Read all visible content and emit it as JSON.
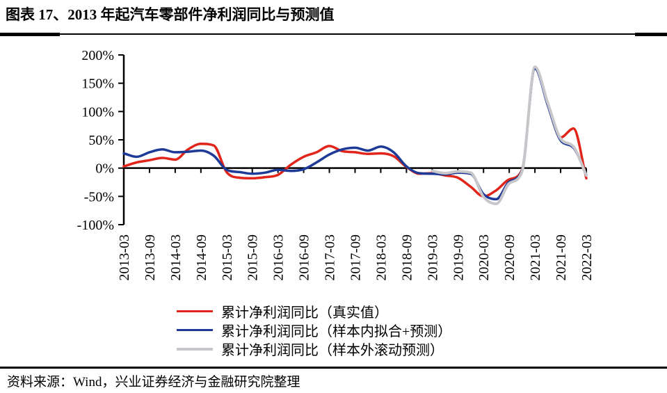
{
  "source": {
    "label": "资料来源：Wind，兴业证券经济与金融研究院整理"
  },
  "chart_data": {
    "type": "line",
    "title": "图表 17、2013 年起汽车零部件净利润同比与预测值",
    "xlabel": "",
    "ylabel": "",
    "ylim": [
      -100,
      200
    ],
    "grid": false,
    "legend_position": "bottom",
    "axis_color": "#000000",
    "y_ticks": [
      200,
      150,
      100,
      50,
      0,
      -50,
      -100
    ],
    "y_tick_labels": [
      "200%",
      "150%",
      "100%",
      "50%",
      "0%",
      "-50%",
      "-100%"
    ],
    "x_tick_labels": [
      "2013-03",
      "2013-09",
      "2014-03",
      "2014-09",
      "2015-03",
      "2015-09",
      "2016-03",
      "2016-09",
      "2017-03",
      "2017-09",
      "2018-03",
      "2018-09",
      "2019-03",
      "2019-09",
      "2020-03",
      "2020-09",
      "2021-03",
      "2021-09",
      "2022-03"
    ],
    "x": [
      "2013-03",
      "2013-06",
      "2013-09",
      "2013-12",
      "2014-03",
      "2014-06",
      "2014-09",
      "2014-12",
      "2015-03",
      "2015-06",
      "2015-09",
      "2015-12",
      "2016-03",
      "2016-06",
      "2016-09",
      "2016-12",
      "2017-03",
      "2017-06",
      "2017-09",
      "2017-12",
      "2018-03",
      "2018-06",
      "2018-09",
      "2018-12",
      "2019-03",
      "2019-06",
      "2019-09",
      "2019-12",
      "2020-03",
      "2020-06",
      "2020-09",
      "2020-12",
      "2021-03",
      "2021-06",
      "2021-09",
      "2021-12",
      "2022-03"
    ],
    "unit": "percent",
    "series": [
      {
        "key": "actual",
        "name": "累计净利润同比（真实值）",
        "color": "#E1251B",
        "width": 3.5,
        "values": [
          3,
          10,
          14,
          18,
          15,
          33,
          43,
          40,
          -7,
          -17,
          -18,
          -16,
          -12,
          6,
          20,
          28,
          39,
          30,
          28,
          25,
          26,
          21,
          2,
          -10,
          -9,
          -13,
          -17,
          -33,
          -50,
          -39,
          -20,
          -3,
          177,
          113,
          54,
          70,
          -18
        ]
      },
      {
        "key": "fitted",
        "name": "累计净利润同比（样本内拟合+预测）",
        "color": "#1E3A97",
        "width": 3.5,
        "values": [
          26,
          20,
          28,
          33,
          28,
          29,
          31,
          22,
          -3,
          -7,
          -10,
          -8,
          -3,
          -5,
          -2,
          10,
          24,
          33,
          36,
          31,
          38,
          28,
          3,
          -9,
          -10,
          -11,
          -8,
          -10,
          -46,
          -55,
          -24,
          -4,
          176,
          111,
          49,
          36,
          -12
        ]
      },
      {
        "key": "rolling",
        "name": "累计净利润同比（样本外滚动预测）",
        "color": "#C7C7CB",
        "width": 4,
        "values": [
          null,
          null,
          null,
          null,
          null,
          null,
          null,
          null,
          null,
          null,
          null,
          null,
          null,
          null,
          null,
          null,
          null,
          null,
          null,
          null,
          null,
          null,
          null,
          null,
          -5,
          -9,
          -6,
          -8,
          -51,
          -63,
          -27,
          -6,
          179,
          115,
          52,
          38,
          -13
        ]
      }
    ]
  }
}
